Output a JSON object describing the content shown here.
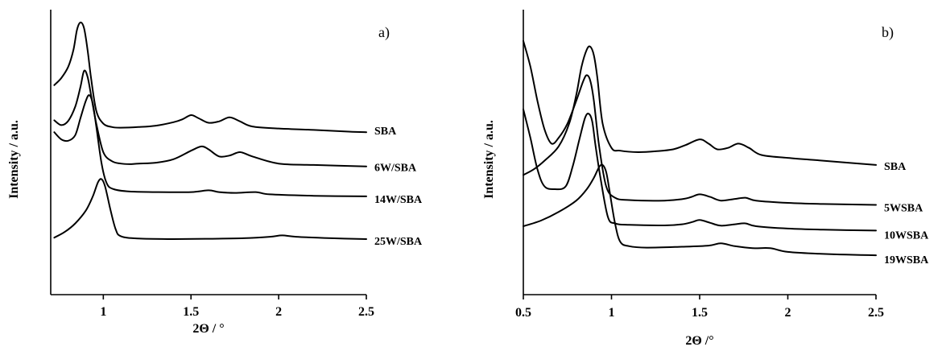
{
  "chart_data": [
    {
      "type": "line",
      "panel_label": "a)",
      "xlabel": "2Θ / °",
      "ylabel": "Intensity / a.u.",
      "xlim": [
        0.7,
        2.5
      ],
      "x_ticks": [
        1,
        1.5,
        2,
        2.5
      ],
      "x_tick_labels": [
        "1",
        "1.5",
        "2",
        "2.5"
      ],
      "series": [
        {
          "name": "SBA",
          "points": [
            [
              0.72,
              0.735
            ],
            [
              0.76,
              0.76
            ],
            [
              0.8,
              0.8
            ],
            [
              0.83,
              0.86
            ],
            [
              0.85,
              0.93
            ],
            [
              0.87,
              0.955
            ],
            [
              0.89,
              0.935
            ],
            [
              0.91,
              0.86
            ],
            [
              0.93,
              0.76
            ],
            [
              0.96,
              0.645
            ],
            [
              1.0,
              0.6
            ],
            [
              1.05,
              0.588
            ],
            [
              1.1,
              0.586
            ],
            [
              1.2,
              0.588
            ],
            [
              1.3,
              0.593
            ],
            [
              1.4,
              0.605
            ],
            [
              1.45,
              0.615
            ],
            [
              1.5,
              0.63
            ],
            [
              1.54,
              0.62
            ],
            [
              1.6,
              0.603
            ],
            [
              1.66,
              0.608
            ],
            [
              1.72,
              0.622
            ],
            [
              1.78,
              0.608
            ],
            [
              1.85,
              0.59
            ],
            [
              2.0,
              0.583
            ],
            [
              2.2,
              0.578
            ],
            [
              2.4,
              0.572
            ],
            [
              2.5,
              0.57
            ]
          ]
        },
        {
          "name": "6W/SBA",
          "points": [
            [
              0.72,
              0.612
            ],
            [
              0.76,
              0.595
            ],
            [
              0.8,
              0.61
            ],
            [
              0.84,
              0.66
            ],
            [
              0.87,
              0.73
            ],
            [
              0.89,
              0.785
            ],
            [
              0.91,
              0.765
            ],
            [
              0.93,
              0.7
            ],
            [
              0.96,
              0.6
            ],
            [
              1.0,
              0.5
            ],
            [
              1.05,
              0.468
            ],
            [
              1.1,
              0.46
            ],
            [
              1.15,
              0.458
            ],
            [
              1.2,
              0.46
            ],
            [
              1.3,
              0.463
            ],
            [
              1.4,
              0.475
            ],
            [
              1.5,
              0.505
            ],
            [
              1.56,
              0.52
            ],
            [
              1.6,
              0.51
            ],
            [
              1.66,
              0.485
            ],
            [
              1.72,
              0.488
            ],
            [
              1.78,
              0.5
            ],
            [
              1.85,
              0.485
            ],
            [
              2.0,
              0.46
            ],
            [
              2.2,
              0.455
            ],
            [
              2.5,
              0.45
            ]
          ]
        },
        {
          "name": "14W/SBA",
          "points": [
            [
              0.72,
              0.57
            ],
            [
              0.76,
              0.545
            ],
            [
              0.8,
              0.54
            ],
            [
              0.84,
              0.56
            ],
            [
              0.87,
              0.62
            ],
            [
              0.9,
              0.68
            ],
            [
              0.92,
              0.7
            ],
            [
              0.94,
              0.67
            ],
            [
              0.96,
              0.59
            ],
            [
              0.99,
              0.46
            ],
            [
              1.02,
              0.39
            ],
            [
              1.06,
              0.37
            ],
            [
              1.15,
              0.362
            ],
            [
              1.3,
              0.36
            ],
            [
              1.5,
              0.36
            ],
            [
              1.6,
              0.366
            ],
            [
              1.66,
              0.36
            ],
            [
              1.75,
              0.357
            ],
            [
              1.87,
              0.36
            ],
            [
              1.95,
              0.352
            ],
            [
              2.2,
              0.347
            ],
            [
              2.5,
              0.345
            ]
          ]
        },
        {
          "name": "25W/SBA",
          "points": [
            [
              0.72,
              0.2
            ],
            [
              0.78,
              0.22
            ],
            [
              0.84,
              0.25
            ],
            [
              0.9,
              0.295
            ],
            [
              0.94,
              0.345
            ],
            [
              0.97,
              0.395
            ],
            [
              0.99,
              0.405
            ],
            [
              1.01,
              0.38
            ],
            [
              1.04,
              0.3
            ],
            [
              1.07,
              0.23
            ],
            [
              1.1,
              0.205
            ],
            [
              1.2,
              0.197
            ],
            [
              1.4,
              0.195
            ],
            [
              1.6,
              0.196
            ],
            [
              1.8,
              0.198
            ],
            [
              1.95,
              0.203
            ],
            [
              2.02,
              0.208
            ],
            [
              2.1,
              0.203
            ],
            [
              2.3,
              0.198
            ],
            [
              2.5,
              0.195
            ]
          ]
        }
      ]
    },
    {
      "type": "line",
      "panel_label": "b)",
      "xlabel": "2Θ /°",
      "ylabel": "Intensity / a.u.",
      "xlim": [
        0.5,
        2.5
      ],
      "x_ticks": [
        0.5,
        1,
        1.5,
        2,
        2.5
      ],
      "x_tick_labels": [
        "0.5",
        "1",
        "1.5",
        "2",
        "2.5"
      ],
      "series": [
        {
          "name": "SBA",
          "points": [
            [
              0.5,
              0.42
            ],
            [
              0.56,
              0.44
            ],
            [
              0.62,
              0.47
            ],
            [
              0.7,
              0.52
            ],
            [
              0.76,
              0.6
            ],
            [
              0.8,
              0.7
            ],
            [
              0.83,
              0.8
            ],
            [
              0.86,
              0.86
            ],
            [
              0.88,
              0.87
            ],
            [
              0.9,
              0.84
            ],
            [
              0.92,
              0.76
            ],
            [
              0.95,
              0.6
            ],
            [
              1.0,
              0.515
            ],
            [
              1.05,
              0.505
            ],
            [
              1.15,
              0.5
            ],
            [
              1.25,
              0.503
            ],
            [
              1.35,
              0.51
            ],
            [
              1.42,
              0.525
            ],
            [
              1.5,
              0.545
            ],
            [
              1.55,
              0.53
            ],
            [
              1.6,
              0.51
            ],
            [
              1.66,
              0.515
            ],
            [
              1.72,
              0.53
            ],
            [
              1.78,
              0.515
            ],
            [
              1.85,
              0.49
            ],
            [
              2.0,
              0.48
            ],
            [
              2.2,
              0.47
            ],
            [
              2.5,
              0.455
            ]
          ]
        },
        {
          "name": "5WSBA",
          "points": [
            [
              0.5,
              0.89
            ],
            [
              0.54,
              0.8
            ],
            [
              0.58,
              0.68
            ],
            [
              0.62,
              0.58
            ],
            [
              0.66,
              0.53
            ],
            [
              0.7,
              0.55
            ],
            [
              0.75,
              0.6
            ],
            [
              0.8,
              0.68
            ],
            [
              0.84,
              0.75
            ],
            [
              0.86,
              0.77
            ],
            [
              0.88,
              0.75
            ],
            [
              0.9,
              0.68
            ],
            [
              0.93,
              0.52
            ],
            [
              0.97,
              0.38
            ],
            [
              1.02,
              0.34
            ],
            [
              1.1,
              0.332
            ],
            [
              1.3,
              0.33
            ],
            [
              1.4,
              0.335
            ],
            [
              1.45,
              0.342
            ],
            [
              1.5,
              0.352
            ],
            [
              1.56,
              0.343
            ],
            [
              1.62,
              0.33
            ],
            [
              1.7,
              0.336
            ],
            [
              1.76,
              0.34
            ],
            [
              1.82,
              0.33
            ],
            [
              2.0,
              0.322
            ],
            [
              2.2,
              0.318
            ],
            [
              2.5,
              0.315
            ]
          ]
        },
        {
          "name": "10WSBA",
          "points": [
            [
              0.5,
              0.65
            ],
            [
              0.54,
              0.55
            ],
            [
              0.58,
              0.44
            ],
            [
              0.62,
              0.38
            ],
            [
              0.68,
              0.37
            ],
            [
              0.74,
              0.38
            ],
            [
              0.78,
              0.45
            ],
            [
              0.82,
              0.55
            ],
            [
              0.85,
              0.62
            ],
            [
              0.87,
              0.635
            ],
            [
              0.89,
              0.61
            ],
            [
              0.91,
              0.52
            ],
            [
              0.94,
              0.4
            ],
            [
              0.98,
              0.272
            ],
            [
              1.02,
              0.25
            ],
            [
              1.1,
              0.245
            ],
            [
              1.3,
              0.243
            ],
            [
              1.4,
              0.247
            ],
            [
              1.46,
              0.255
            ],
            [
              1.5,
              0.262
            ],
            [
              1.56,
              0.252
            ],
            [
              1.62,
              0.242
            ],
            [
              1.7,
              0.247
            ],
            [
              1.76,
              0.25
            ],
            [
              1.82,
              0.24
            ],
            [
              2.0,
              0.232
            ],
            [
              2.2,
              0.228
            ],
            [
              2.5,
              0.225
            ]
          ]
        },
        {
          "name": "19WSBA",
          "points": [
            [
              0.5,
              0.24
            ],
            [
              0.6,
              0.26
            ],
            [
              0.7,
              0.29
            ],
            [
              0.8,
              0.33
            ],
            [
              0.86,
              0.37
            ],
            [
              0.9,
              0.41
            ],
            [
              0.93,
              0.448
            ],
            [
              0.95,
              0.455
            ],
            [
              0.97,
              0.43
            ],
            [
              0.99,
              0.36
            ],
            [
              1.02,
              0.25
            ],
            [
              1.05,
              0.185
            ],
            [
              1.1,
              0.17
            ],
            [
              1.2,
              0.165
            ],
            [
              1.4,
              0.168
            ],
            [
              1.55,
              0.172
            ],
            [
              1.62,
              0.18
            ],
            [
              1.7,
              0.17
            ],
            [
              1.8,
              0.163
            ],
            [
              1.9,
              0.163
            ],
            [
              2.0,
              0.15
            ],
            [
              2.2,
              0.143
            ],
            [
              2.5,
              0.138
            ]
          ]
        }
      ]
    }
  ]
}
